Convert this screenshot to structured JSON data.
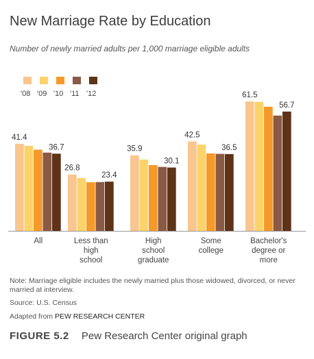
{
  "title": "New Marriage Rate by Education",
  "subtitle": "Number of newly married adults per 1,000 marriage eligible adults",
  "note": "Note: Marriage eligible includes the newly married plus those widowed, divorced, or never married at interview.",
  "source": "Source: U.S. Census",
  "adapted_prefix": "Adapted from",
  "adapted_org": "PEW RESEARCH CENTER",
  "caption_figure": "FIGURE 5.2",
  "caption_text": "Pew Research Center original graph",
  "colors": [
    "#f9c68f",
    "#fcd36a",
    "#f59a2a",
    "#8a5a45",
    "#5e3317"
  ],
  "chart_data": {
    "type": "bar",
    "legend_position": "top-left",
    "ylim": [
      0,
      70
    ],
    "grid": false,
    "categories": [
      [
        "All"
      ],
      [
        "Less than",
        "high",
        "school"
      ],
      [
        "High",
        "school",
        "graduate"
      ],
      [
        "Some",
        "college"
      ],
      [
        "Bachelor's",
        "degree or",
        "more"
      ]
    ],
    "series": [
      {
        "name": "'08",
        "values": [
          41.4,
          26.8,
          35.9,
          42.5,
          61.5
        ]
      },
      {
        "name": "'09",
        "values": [
          40.4,
          25.1,
          33.9,
          41.0,
          61.3
        ]
      },
      {
        "name": "'10",
        "values": [
          38.6,
          23.1,
          31.3,
          36.8,
          59.0
        ]
      },
      {
        "name": "'11",
        "values": [
          37.2,
          23.2,
          30.4,
          36.6,
          54.8
        ]
      },
      {
        "name": "'12",
        "values": [
          36.7,
          23.4,
          30.1,
          36.5,
          56.7
        ]
      }
    ],
    "data_labels": [
      {
        "series": 0,
        "category": 0,
        "text": "41.4"
      },
      {
        "series": 4,
        "category": 0,
        "text": "36.7"
      },
      {
        "series": 0,
        "category": 1,
        "text": "26.8"
      },
      {
        "series": 4,
        "category": 1,
        "text": "23.4"
      },
      {
        "series": 0,
        "category": 2,
        "text": "35.9"
      },
      {
        "series": 4,
        "category": 2,
        "text": "30.1"
      },
      {
        "series": 0,
        "category": 3,
        "text": "42.5"
      },
      {
        "series": 4,
        "category": 3,
        "text": "36.5"
      },
      {
        "series": 0,
        "category": 4,
        "text": "61.5"
      },
      {
        "series": 4,
        "category": 4,
        "text": "56.7"
      }
    ]
  }
}
